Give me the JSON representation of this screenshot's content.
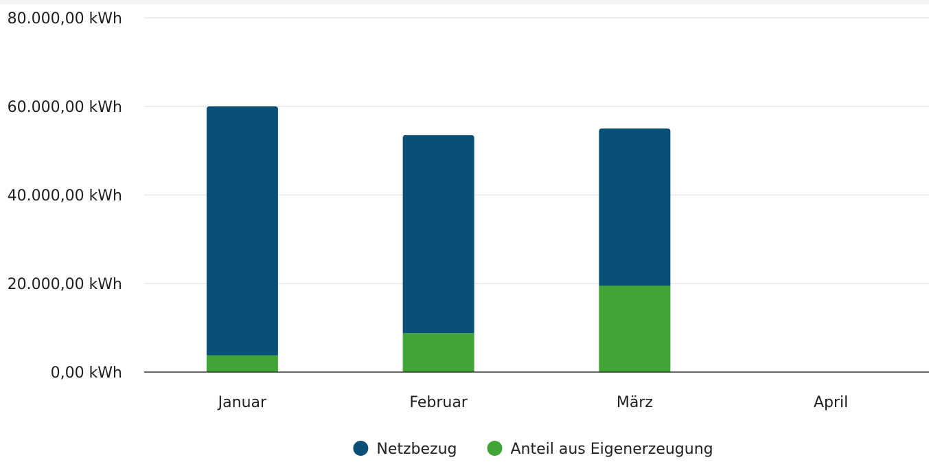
{
  "chart_data": {
    "type": "bar",
    "stacked": true,
    "categories": [
      "Januar",
      "Februar",
      "März",
      "April"
    ],
    "series": [
      {
        "name": "Anteil aus Eigenerzeugung",
        "color": "#41a535",
        "values": [
          3800,
          8800,
          19500,
          0
        ]
      },
      {
        "name": "Netzbezug",
        "color": "#085078",
        "values": [
          56200,
          44700,
          35500,
          0
        ]
      }
    ],
    "ylim": [
      0,
      80000
    ],
    "yticks": [
      0,
      20000,
      40000,
      60000,
      80000
    ],
    "ytick_labels": [
      "0,00 kWh",
      "20.000,00 kWh",
      "40.000,00 kWh",
      "60.000,00 kWh",
      "80.000,00 kWh"
    ],
    "grid": true,
    "legend_position": "bottom-center",
    "legend_order": [
      "Netzbezug",
      "Anteil aus Eigenerzeugung"
    ],
    "title": "",
    "xlabel": "",
    "ylabel": ""
  }
}
